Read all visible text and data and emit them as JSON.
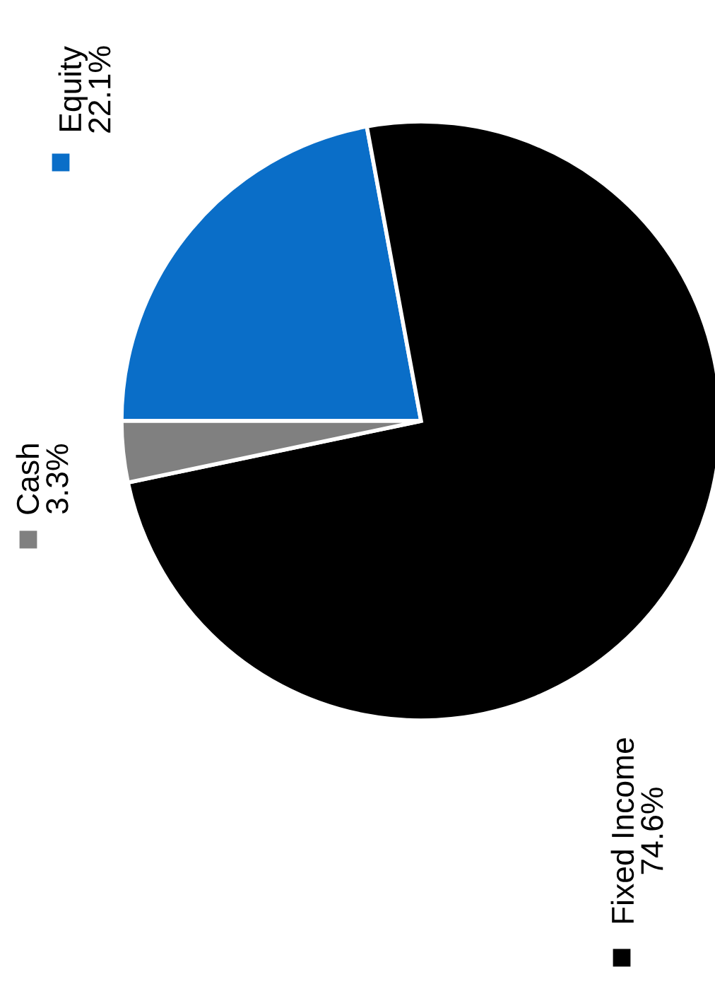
{
  "chart_data": {
    "type": "pie",
    "categories": [
      "Equity",
      "Fixed Income",
      "Cash"
    ],
    "values": [
      22.1,
      74.6,
      3.3
    ],
    "colors": [
      "#0a6ec8",
      "#000000",
      "#808080"
    ],
    "value_labels": [
      "22.1%",
      "74.6%",
      "3.3%"
    ]
  }
}
